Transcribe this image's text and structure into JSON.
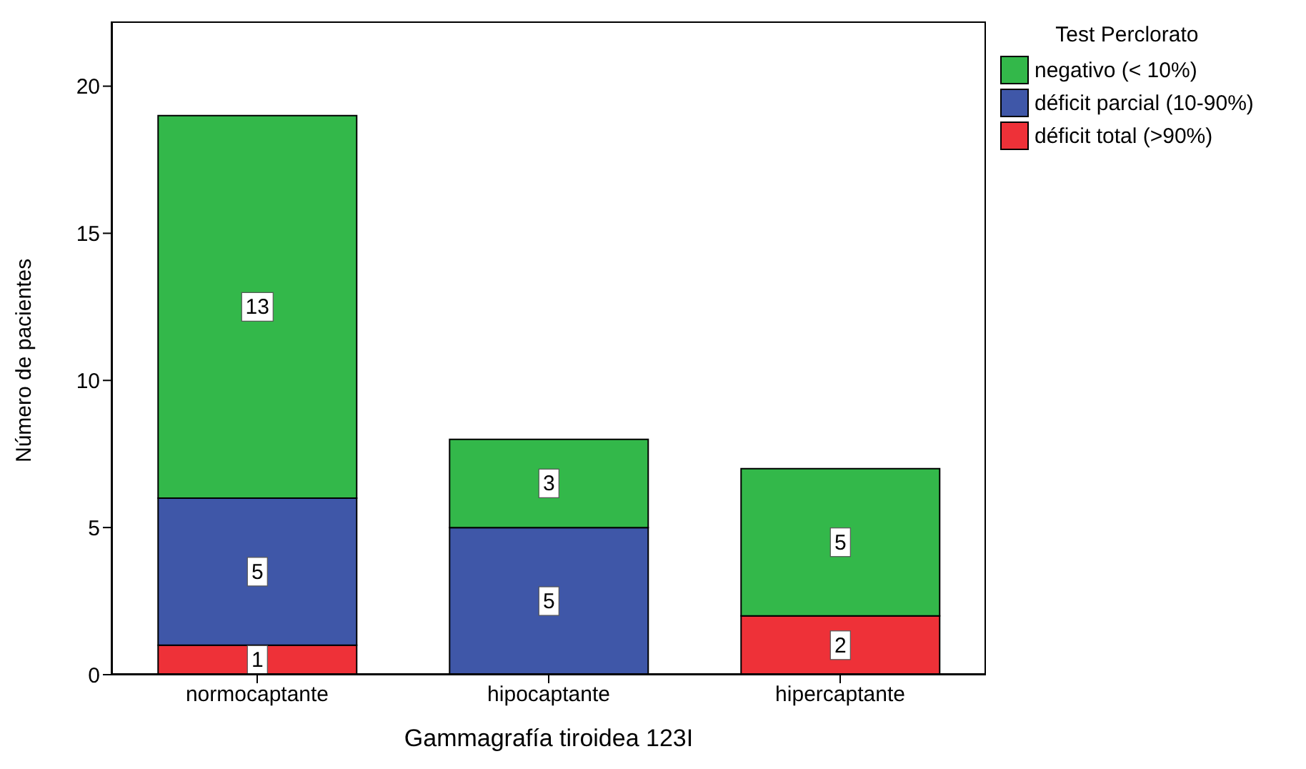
{
  "chart_data": {
    "type": "bar",
    "xlabel": "Gammagrafía tiroidea 123I",
    "ylabel": "Número de pacientes",
    "legend_title": "Test Perclorato",
    "categories": [
      "normocaptante",
      "hipocaptante",
      "hipercaptante"
    ],
    "stacked": true,
    "series": [
      {
        "name": "déficit total (>90%)",
        "color": "#ee3138",
        "values": [
          1,
          0,
          2
        ],
        "value_labels": [
          "1",
          null,
          "2"
        ]
      },
      {
        "name": "déficit parcial (10-90%)",
        "color": "#3f57a8",
        "values": [
          5,
          5,
          0
        ],
        "value_labels": [
          "5",
          "5",
          null
        ]
      },
      {
        "name": "negativo (< 10%)",
        "color": "#33b84a",
        "values": [
          13,
          3,
          5
        ],
        "value_labels": [
          "13",
          "3",
          "5"
        ]
      }
    ],
    "ylim": [
      0,
      22.2
    ],
    "yticks": [
      0,
      5,
      10,
      15,
      20
    ],
    "grid": false,
    "legend": "top right"
  }
}
